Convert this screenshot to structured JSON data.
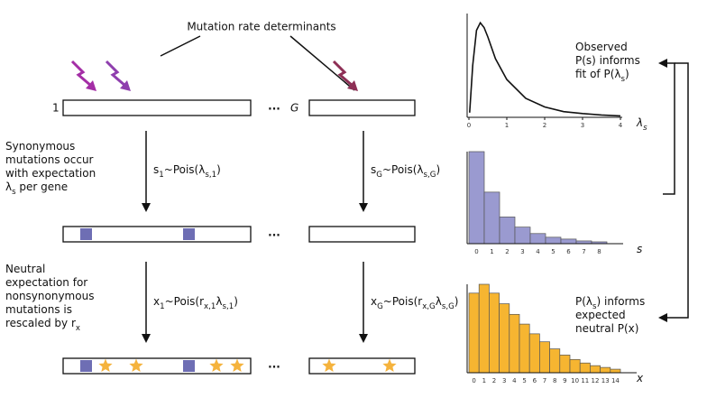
{
  "title": "Mutation rate determinants",
  "gene_first": "1",
  "gene_last": "G",
  "ellipsis": "···",
  "left_notes": [
    [
      [
        "Synonymous"
      ],
      [
        "mutations occur"
      ],
      [
        "with expectation"
      ],
      [
        "λ",
        "s",
        " per gene"
      ]
    ],
    [
      [
        "Neutral"
      ],
      [
        "expectation for"
      ],
      [
        "nonsynonymous"
      ],
      [
        "mutations is"
      ],
      [
        "rescaled by r",
        "x"
      ]
    ]
  ],
  "formulas": [
    [
      "s",
      "1",
      "~Pois(λ",
      "s,1",
      ")"
    ],
    [
      "s",
      "G",
      "~Pois(λ",
      "s,G",
      ")"
    ],
    [
      "x",
      "1",
      "~Pois(r",
      "x,1",
      "λ",
      "s,1",
      ")"
    ],
    [
      "x",
      "G",
      "~Pois(r",
      "x,G",
      "λ",
      "s,G",
      ")"
    ]
  ],
  "right_notes": [
    [
      [
        "Observed"
      ],
      [
        "P(s) informs"
      ],
      [
        "fit of P(λ",
        "s",
        ")"
      ]
    ],
    [
      [
        "P(λ",
        "s",
        ") informs"
      ],
      [
        "expected"
      ],
      [
        "neutral P(x)"
      ]
    ]
  ],
  "chart_data": [
    {
      "type": "line",
      "x_label": [
        "λ",
        "s"
      ],
      "x": [
        0.02,
        0.1,
        0.2,
        0.3,
        0.4,
        0.5,
        0.7,
        1,
        1.5,
        2,
        2.5,
        3,
        3.5,
        4
      ],
      "values": [
        0.05,
        0.55,
        0.92,
        1.0,
        0.95,
        0.85,
        0.62,
        0.4,
        0.2,
        0.11,
        0.06,
        0.04,
        0.025,
        0.015
      ],
      "xlim": [
        0,
        4
      ],
      "xticks": [
        0,
        1,
        2,
        3,
        4
      ],
      "ylim": [
        0,
        1.05
      ],
      "color": "#111111"
    },
    {
      "type": "bar",
      "x_label": [
        "s"
      ],
      "categories": [
        "0",
        "1",
        "2",
        "3",
        "4",
        "5",
        "6",
        "7",
        "8"
      ],
      "values": [
        100,
        56,
        29,
        18,
        11,
        7,
        5,
        3,
        2
      ],
      "ylim": [
        0,
        100
      ],
      "color": "#9a9ad0"
    },
    {
      "type": "bar",
      "x_label": [
        "x"
      ],
      "categories": [
        "0",
        "1",
        "2",
        "3",
        "4",
        "5",
        "6",
        "7",
        "8",
        "9",
        "10",
        "11",
        "12",
        "13",
        "14"
      ],
      "values": [
        90,
        100,
        90,
        78,
        66,
        55,
        44,
        35,
        27,
        20,
        15,
        11,
        8,
        6,
        4
      ],
      "ylim": [
        0,
        100
      ],
      "color": "#f6b531"
    }
  ]
}
